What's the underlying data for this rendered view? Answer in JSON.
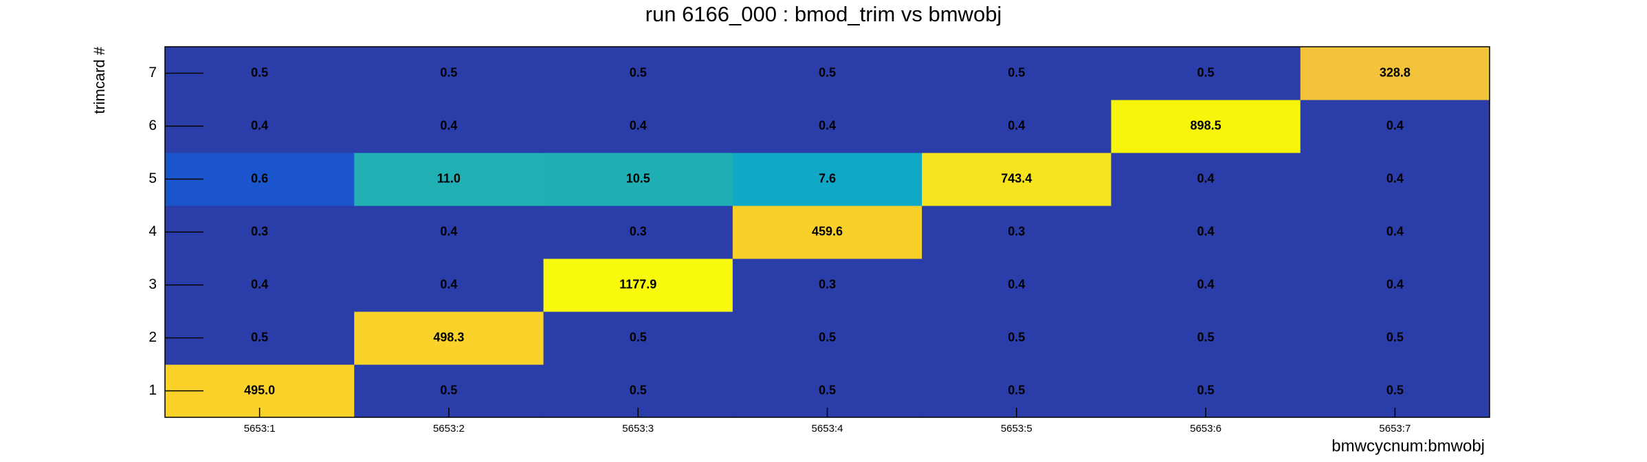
{
  "chart_data": {
    "type": "heatmap",
    "title": "run 6166_000 : bmod_trim vs bmwobj",
    "x_label": "bmwcycnum:bmwobj",
    "y_label": "trimcard #",
    "categories": [
      "5653:1",
      "5653:2",
      "5653:3",
      "5653:4",
      "5653:5",
      "5653:6",
      "5653:7"
    ],
    "y": [
      1,
      2,
      3,
      4,
      5,
      6,
      7
    ],
    "ylim": [
      0.5,
      7.5
    ],
    "yticks": [
      1,
      2,
      3,
      4,
      5,
      6,
      7
    ],
    "values": [
      [
        495.0,
        0.5,
        0.5,
        0.5,
        0.5,
        0.5,
        0.5
      ],
      [
        0.5,
        498.3,
        0.5,
        0.5,
        0.5,
        0.5,
        0.5
      ],
      [
        0.4,
        0.4,
        1177.9,
        0.3,
        0.4,
        0.4,
        0.4
      ],
      [
        0.3,
        0.4,
        0.3,
        459.6,
        0.3,
        0.4,
        0.4
      ],
      [
        0.6,
        11.0,
        10.5,
        7.6,
        743.4,
        0.4,
        0.4
      ],
      [
        0.4,
        0.4,
        0.4,
        0.4,
        0.4,
        898.5,
        0.4
      ],
      [
        0.5,
        0.5,
        0.5,
        0.5,
        0.5,
        0.5,
        328.8
      ]
    ],
    "value_labels": [
      [
        "495.0",
        "0.5",
        "0.5",
        "0.5",
        "0.5",
        "0.5",
        "0.5"
      ],
      [
        "0.5",
        "498.3",
        "0.5",
        "0.5",
        "0.5",
        "0.5",
        "0.5"
      ],
      [
        "0.4",
        "0.4",
        "1177.9",
        "0.3",
        "0.4",
        "0.4",
        "0.4"
      ],
      [
        "0.3",
        "0.4",
        "0.3",
        "459.6",
        "0.3",
        "0.4",
        "0.4"
      ],
      [
        "0.6",
        "11.0",
        "10.5",
        "7.6",
        "743.4",
        "0.4",
        "0.4"
      ],
      [
        "0.4",
        "0.4",
        "0.4",
        "0.4",
        "0.4",
        "898.5",
        "0.4"
      ],
      [
        "0.5",
        "0.5",
        "0.5",
        "0.5",
        "0.5",
        "0.5",
        "328.8"
      ]
    ],
    "colors": [
      [
        "#fbd22a",
        "#2a3da9",
        "#2a3da9",
        "#2a3da9",
        "#2a3da9",
        "#2a3da9",
        "#2a3da9"
      ],
      [
        "#2a3da9",
        "#fbd22a",
        "#2a3da9",
        "#2a3da9",
        "#2a3da9",
        "#2a3da9",
        "#2a3da9"
      ],
      [
        "#2a3da9",
        "#2a3da9",
        "#f8f90c",
        "#2a3da9",
        "#2a3da9",
        "#2a3da9",
        "#2a3da9"
      ],
      [
        "#2a3da9",
        "#2a3da9",
        "#2a3da9",
        "#f9d02a",
        "#2a3da9",
        "#2a3da9",
        "#2a3da9"
      ],
      [
        "#1a55cd",
        "#21b0b4",
        "#21afb6",
        "#10a8c6",
        "#f5e41e",
        "#2a3da9",
        "#2a3da9"
      ],
      [
        "#2a3da9",
        "#2a3da9",
        "#2a3da9",
        "#2a3da9",
        "#2a3da9",
        "#f7f50c",
        "#2a3da9"
      ],
      [
        "#2a3da9",
        "#2a3da9",
        "#2a3da9",
        "#2a3da9",
        "#2a3da9",
        "#2a3da9",
        "#f2c33b"
      ]
    ]
  }
}
